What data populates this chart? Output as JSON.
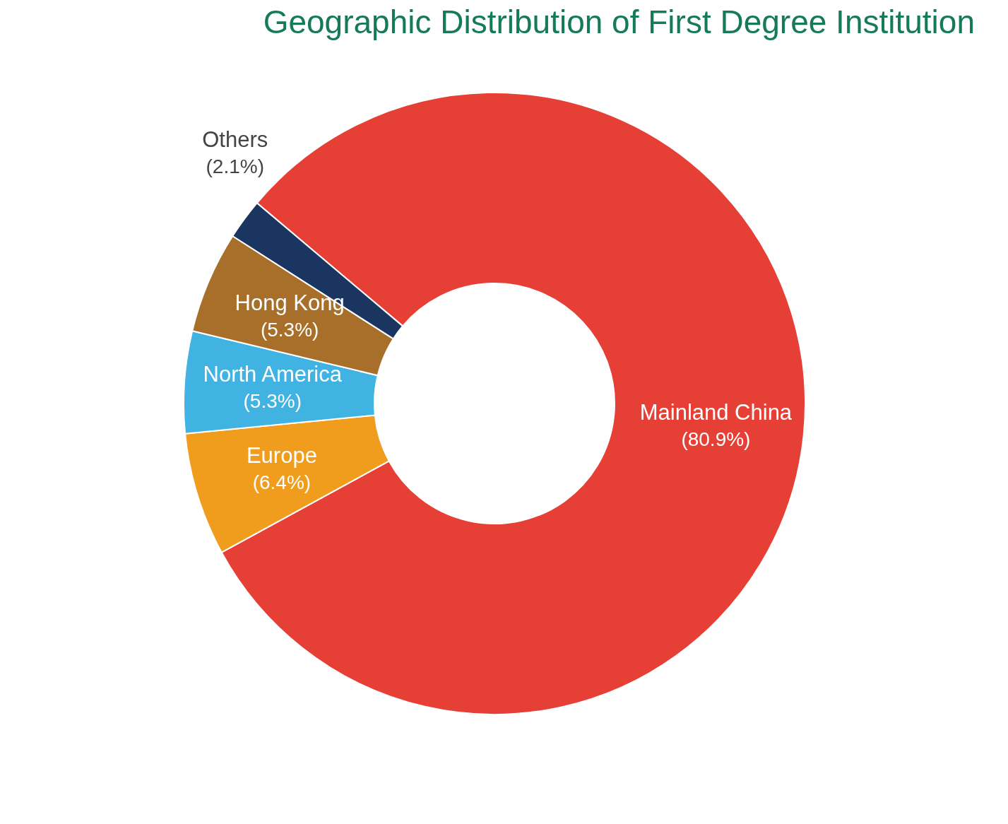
{
  "chart_data": {
    "type": "donut",
    "title": "Geographic Distribution of First Degree Institution",
    "categories": [
      "Mainland China",
      "Europe",
      "North America",
      "Hong Kong",
      "Others"
    ],
    "values": [
      80.9,
      6.4,
      5.3,
      5.3,
      2.1
    ],
    "value_labels": [
      "(80.9%)",
      "(6.4%)",
      "(5.3%)",
      "(5.3%)",
      "(2.1%)"
    ],
    "colors": [
      "#e63f36",
      "#f09d1e",
      "#40b3e3",
      "#a86f2b",
      "#1b3561"
    ]
  }
}
